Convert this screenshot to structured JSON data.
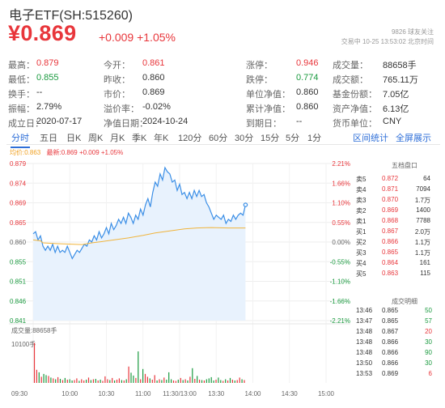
{
  "header": {
    "title": "电子ETF(SH:515260)",
    "price": "¥0.869",
    "change": "+0.009 +1.05%",
    "followers": "9826 球友关注",
    "trade_status": "交易中 10-25 13:53:02 北京时间"
  },
  "stats": [
    [
      {
        "label": "最高：",
        "value": "0.879",
        "tone": "up"
      },
      {
        "label": "今开：",
        "value": "0.861",
        "tone": "up"
      },
      {
        "label": "涨停：",
        "value": "0.946",
        "tone": "up"
      },
      {
        "label": "成交量：",
        "value": "88658手",
        "tone": "dark"
      }
    ],
    [
      {
        "label": "最低：",
        "value": "0.855",
        "tone": "down"
      },
      {
        "label": "昨收：",
        "value": "0.860",
        "tone": "dark"
      },
      {
        "label": "跌停：",
        "value": "0.774",
        "tone": "down"
      },
      {
        "label": "成交额：",
        "value": "765.11万",
        "tone": "dark"
      }
    ],
    [
      {
        "label": "换手：",
        "value": "--",
        "tone": "dark"
      },
      {
        "label": "市价：",
        "value": "0.869",
        "tone": "dark"
      },
      {
        "label": "单位净值：",
        "value": "0.860",
        "tone": "dark"
      },
      {
        "label": "基金份额：",
        "value": "7.05亿",
        "tone": "dark"
      }
    ],
    [
      {
        "label": "振幅：",
        "value": "2.79%",
        "tone": "dark"
      },
      {
        "label": "溢价率：",
        "value": "-0.02%",
        "tone": "dark"
      },
      {
        "label": "累计净值：",
        "value": "0.860",
        "tone": "dark"
      },
      {
        "label": "资产净值：",
        "value": "6.13亿",
        "tone": "dark"
      }
    ],
    [
      {
        "label": "成立日：",
        "value": "2020-07-17",
        "tone": "dark"
      },
      {
        "label": "净值日期：",
        "value": "2024-10-24",
        "tone": "dark"
      },
      {
        "label": "到期日：",
        "value": "--",
        "tone": "dark"
      },
      {
        "label": "货币单位：",
        "value": "CNY",
        "tone": "dark"
      }
    ]
  ],
  "tabs": [
    "分时",
    "五日",
    "日K",
    "周K",
    "月K",
    "季K",
    "年K",
    "120分",
    "60分",
    "30分",
    "15分",
    "5分",
    "1分"
  ],
  "tab_links": [
    "区间统计",
    "全屏展示"
  ],
  "avg_label": "均价:0.863",
  "latest_label": "最新:0.869 +0.009 +1.05%",
  "volume_label": "成交量:88658手",
  "volume_max_label": "10100手",
  "orderbook": {
    "title": "五档盘口",
    "rows": [
      {
        "side": "卖5",
        "price": "0.872",
        "vol": "64",
        "tone": "up"
      },
      {
        "side": "卖4",
        "price": "0.871",
        "vol": "7094",
        "tone": "up"
      },
      {
        "side": "卖3",
        "price": "0.870",
        "vol": "1.7万",
        "tone": "up"
      },
      {
        "side": "卖2",
        "price": "0.869",
        "vol": "1400",
        "tone": "up"
      },
      {
        "side": "卖1",
        "price": "0.868",
        "vol": "7788",
        "tone": "up"
      },
      {
        "side": "买1",
        "price": "0.867",
        "vol": "2.0万",
        "tone": "up"
      },
      {
        "side": "买2",
        "price": "0.866",
        "vol": "1.1万",
        "tone": "up"
      },
      {
        "side": "买3",
        "price": "0.865",
        "vol": "1.1万",
        "tone": "up"
      },
      {
        "side": "买4",
        "price": "0.864",
        "vol": "161",
        "tone": "up"
      },
      {
        "side": "买5",
        "price": "0.863",
        "vol": "115",
        "tone": "up"
      }
    ]
  },
  "trades": {
    "title": "成交明细",
    "rows": [
      {
        "time": "13:46",
        "price": "0.865",
        "vol": "50",
        "tone": "down"
      },
      {
        "time": "13:47",
        "price": "0.865",
        "vol": "57",
        "tone": "down"
      },
      {
        "time": "13:48",
        "price": "0.867",
        "vol": "20",
        "tone": "up"
      },
      {
        "time": "13:48",
        "price": "0.866",
        "vol": "30",
        "tone": "down"
      },
      {
        "time": "13:48",
        "price": "0.866",
        "vol": "90",
        "tone": "down"
      },
      {
        "time": "13:50",
        "price": "0.866",
        "vol": "30",
        "tone": "down"
      },
      {
        "time": "13:53",
        "price": "0.869",
        "vol": "6",
        "tone": "up"
      }
    ]
  },
  "chart_data": {
    "type": "line",
    "prev_close": 0.86,
    "y_ticks": [
      {
        "price": "0.879",
        "pct": "2.21%"
      },
      {
        "price": "0.874",
        "pct": "1.66%"
      },
      {
        "price": "0.869",
        "pct": "1.10%"
      },
      {
        "price": "0.865",
        "pct": "0.55%"
      },
      {
        "price": "0.860",
        "pct": "0.00%"
      },
      {
        "price": "0.855",
        "pct": "-0.55%"
      },
      {
        "price": "0.851",
        "pct": "-1.10%"
      },
      {
        "price": "0.846",
        "pct": "-1.66%"
      },
      {
        "price": "0.841",
        "pct": "-2.21%"
      }
    ],
    "ylim": [
      0.841,
      0.879
    ],
    "x_ticks": [
      "09:30",
      "10:00",
      "10:30",
      "11:00",
      "11:30/13:00",
      "13:30",
      "14:00",
      "14:30",
      "15:00"
    ],
    "total_minutes": 240,
    "series": [
      {
        "key": "price",
        "color": "#3a8ee6",
        "points": [
          [
            0,
            0.862
          ],
          [
            2,
            0.8625
          ],
          [
            4,
            0.8605
          ],
          [
            6,
            0.8615
          ],
          [
            8,
            0.859
          ],
          [
            10,
            0.858
          ],
          [
            12,
            0.859
          ],
          [
            14,
            0.858
          ],
          [
            16,
            0.8595
          ],
          [
            18,
            0.8575
          ],
          [
            20,
            0.859
          ],
          [
            22,
            0.8575
          ],
          [
            24,
            0.858
          ],
          [
            26,
            0.8575
          ],
          [
            28,
            0.859
          ],
          [
            30,
            0.8575
          ],
          [
            32,
            0.856
          ],
          [
            34,
            0.857
          ],
          [
            36,
            0.858
          ],
          [
            38,
            0.8575
          ],
          [
            40,
            0.8585
          ],
          [
            42,
            0.8595
          ],
          [
            44,
            0.859
          ],
          [
            46,
            0.8605
          ],
          [
            48,
            0.86
          ],
          [
            50,
            0.8615
          ],
          [
            52,
            0.8605
          ],
          [
            54,
            0.8625
          ],
          [
            56,
            0.861
          ],
          [
            58,
            0.862
          ],
          [
            60,
            0.8635
          ],
          [
            62,
            0.862
          ],
          [
            64,
            0.8645
          ],
          [
            66,
            0.863
          ],
          [
            68,
            0.864
          ],
          [
            70,
            0.8655
          ],
          [
            72,
            0.8645
          ],
          [
            74,
            0.866
          ],
          [
            76,
            0.8645
          ],
          [
            78,
            0.867
          ],
          [
            80,
            0.866
          ],
          [
            82,
            0.8645
          ],
          [
            84,
            0.8665
          ],
          [
            86,
            0.8655
          ],
          [
            88,
            0.868
          ],
          [
            90,
            0.8665
          ],
          [
            92,
            0.869
          ],
          [
            94,
            0.8705
          ],
          [
            96,
            0.8685
          ],
          [
            98,
            0.872
          ],
          [
            100,
            0.8745
          ],
          [
            102,
            0.8735
          ],
          [
            104,
            0.8765
          ],
          [
            106,
            0.875
          ],
          [
            108,
            0.878
          ],
          [
            110,
            0.877
          ],
          [
            112,
            0.8765
          ],
          [
            114,
            0.8745
          ],
          [
            116,
            0.875
          ],
          [
            118,
            0.8725
          ],
          [
            120,
            0.874
          ],
          [
            122,
            0.8715
          ],
          [
            124,
            0.872
          ],
          [
            126,
            0.8705
          ],
          [
            128,
            0.872
          ],
          [
            130,
            0.8705
          ],
          [
            132,
            0.8725
          ],
          [
            134,
            0.871
          ],
          [
            136,
            0.8725
          ],
          [
            138,
            0.871
          ],
          [
            140,
            0.8715
          ],
          [
            142,
            0.8695
          ],
          [
            144,
            0.8685
          ],
          [
            146,
            0.867
          ],
          [
            148,
            0.8655
          ],
          [
            150,
            0.8665
          ],
          [
            152,
            0.866
          ],
          [
            154,
            0.8655
          ],
          [
            156,
            0.8665
          ],
          [
            158,
            0.8645
          ],
          [
            160,
            0.8655
          ],
          [
            162,
            0.865
          ],
          [
            164,
            0.8665
          ],
          [
            166,
            0.8655
          ],
          [
            168,
            0.8665
          ],
          [
            170,
            0.867
          ],
          [
            172,
            0.8665
          ],
          [
            174,
            0.869
          ]
        ]
      },
      {
        "key": "average",
        "color": "#f0b43c",
        "points": [
          [
            0,
            0.8605
          ],
          [
            6,
            0.8603
          ],
          [
            8,
            0.8598
          ],
          [
            20,
            0.8596
          ],
          [
            40,
            0.8594
          ],
          [
            48,
            0.8598
          ],
          [
            56,
            0.8601
          ],
          [
            66,
            0.8605
          ],
          [
            78,
            0.861
          ],
          [
            90,
            0.8616
          ],
          [
            100,
            0.8622
          ],
          [
            112,
            0.8627
          ],
          [
            124,
            0.8632
          ],
          [
            134,
            0.8634
          ],
          [
            146,
            0.8635
          ],
          [
            160,
            0.8634
          ],
          [
            174,
            0.8634
          ]
        ]
      }
    ],
    "volume": {
      "ylim": [
        0,
        10100
      ],
      "values": [
        9800,
        3200,
        2600,
        1500,
        2200,
        1900,
        1700,
        1300,
        1100,
        900,
        1400,
        1000,
        700,
        1200,
        800,
        900,
        600,
        700,
        1100,
        500,
        900,
        600,
        800,
        1300,
        700,
        900,
        1000,
        600,
        800,
        500,
        1600,
        900,
        700,
        1200,
        600,
        800,
        1100,
        700,
        600,
        900,
        4000,
        2500,
        1800,
        1200,
        7700,
        900,
        3400,
        2200,
        1500,
        1100,
        800,
        1900,
        600,
        900,
        700,
        1300,
        800,
        2600,
        900,
        600,
        500,
        800,
        1200,
        700,
        900,
        600,
        1500,
        3600,
        1000,
        1700,
        800,
        700,
        600,
        900,
        1100,
        1400,
        600,
        800,
        1300,
        700,
        500,
        900,
        600,
        1200,
        800,
        600,
        700,
        1300,
        900,
        700
      ]
    }
  }
}
